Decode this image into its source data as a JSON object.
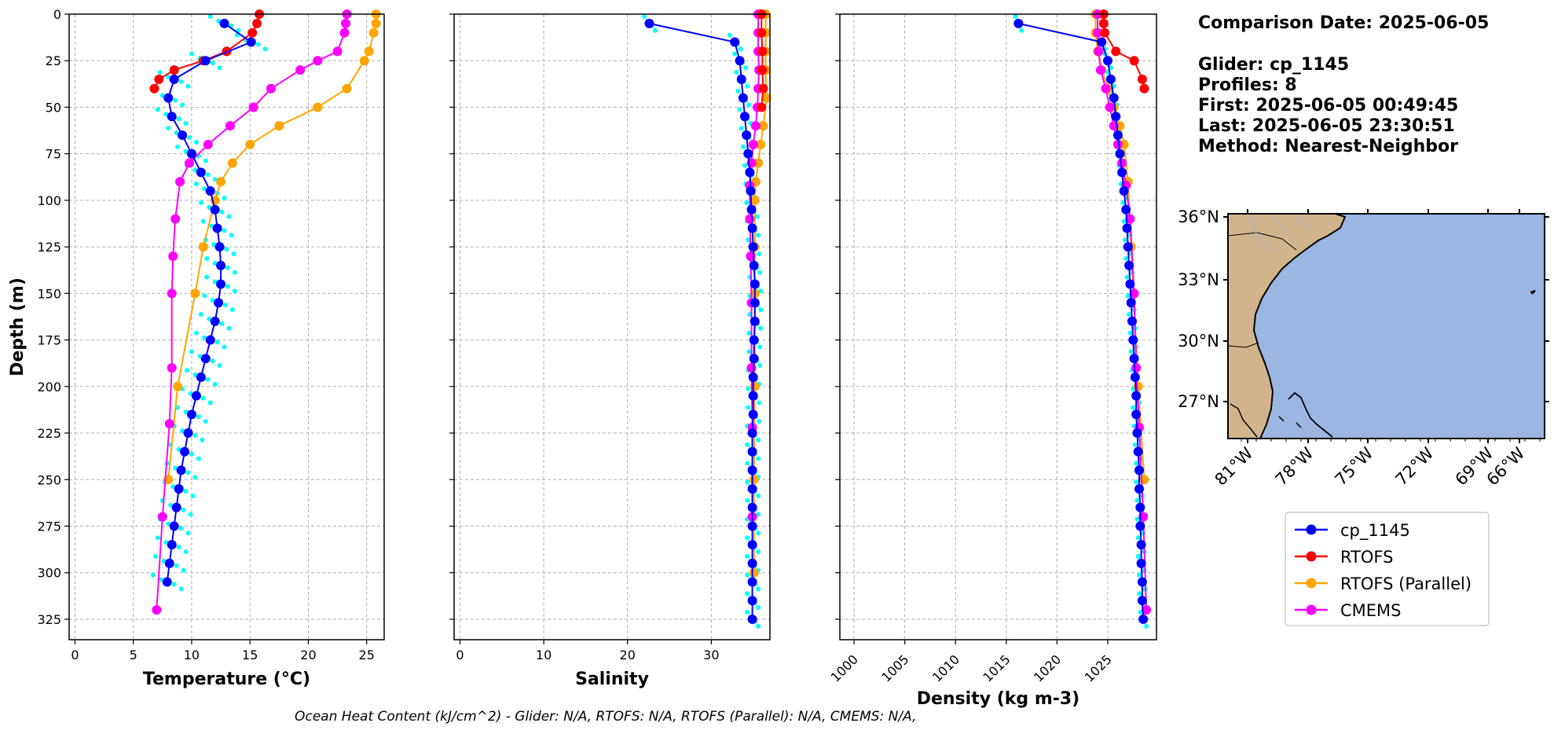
{
  "chart_data": [
    {
      "type": "line",
      "xlabel": "Temperature (°C)",
      "ylabel": "Depth (m)",
      "xlim": [
        -0.5,
        26.5
      ],
      "ylim": [
        336,
        0
      ],
      "xticks": [
        0,
        5,
        10,
        15,
        20,
        25
      ],
      "yticks": [
        0,
        25,
        50,
        75,
        100,
        125,
        150,
        175,
        200,
        225,
        250,
        275,
        300,
        325
      ],
      "grid": true,
      "series": [
        {
          "name": "cp_1145",
          "color": "#0000ff",
          "x": [
            12.8,
            15.1,
            11.2,
            8.5,
            8.0,
            8.3,
            9.2,
            10.0,
            10.8,
            11.6,
            12.0,
            12.2,
            12.4,
            12.5,
            12.5,
            12.3,
            12.0,
            11.6,
            11.2,
            10.8,
            10.4,
            10.0,
            9.7,
            9.4,
            9.1,
            8.9,
            8.7,
            8.5,
            8.3,
            8.1,
            7.9
          ],
          "y": [
            5,
            15,
            25,
            35,
            45,
            55,
            65,
            75,
            85,
            95,
            105,
            115,
            125,
            135,
            145,
            155,
            165,
            175,
            185,
            195,
            205,
            215,
            225,
            235,
            245,
            255,
            265,
            275,
            285,
            295,
            305
          ]
        },
        {
          "name": "RTOFS",
          "color": "#ff0000",
          "x": [
            15.8,
            15.6,
            15.2,
            13.0,
            11.0,
            8.5,
            7.2,
            6.8
          ],
          "y": [
            0,
            5,
            10,
            20,
            25,
            30,
            35,
            40
          ]
        },
        {
          "name": "RTOFS (Parallel)",
          "color": "#ffa500",
          "x": [
            25.8,
            25.8,
            25.6,
            25.2,
            24.8,
            23.3,
            20.8,
            17.5,
            15.0,
            13.5,
            12.5,
            12.0,
            11.0,
            10.3,
            8.8,
            8.0
          ],
          "y": [
            0,
            5,
            10,
            20,
            25,
            40,
            50,
            60,
            70,
            80,
            90,
            100,
            125,
            150,
            200,
            250
          ]
        },
        {
          "name": "CMEMS",
          "color": "#ff00ff",
          "x": [
            23.3,
            23.2,
            23.1,
            22.5,
            20.8,
            19.3,
            16.8,
            15.3,
            13.3,
            11.4,
            9.8,
            9.0,
            8.6,
            8.4,
            8.3,
            8.3,
            8.1,
            7.5,
            7.0
          ],
          "y": [
            0,
            5,
            10,
            20,
            25,
            30,
            40,
            50,
            60,
            70,
            80,
            90,
            110,
            130,
            150,
            190,
            220,
            270,
            320
          ]
        }
      ]
    },
    {
      "type": "line",
      "xlabel": "Salinity",
      "ylim": [
        336,
        0
      ],
      "xlim": [
        -0.7,
        37.0
      ],
      "xticks": [
        0,
        10,
        20,
        30
      ],
      "yticks": [
        0,
        25,
        50,
        75,
        100,
        125,
        150,
        175,
        200,
        225,
        250,
        275,
        300,
        325
      ],
      "grid": true,
      "series": [
        {
          "name": "cp_1145",
          "color": "#0000ff",
          "x": [
            22.6,
            32.8,
            33.4,
            33.6,
            33.8,
            34.0,
            34.2,
            34.4,
            34.6,
            34.7,
            34.8,
            34.9,
            35.0,
            35.1,
            35.2,
            35.2,
            35.2,
            35.1,
            35.1,
            35.0,
            35.0,
            35.0,
            34.9,
            34.9,
            34.9,
            34.9,
            34.9,
            34.9,
            34.9,
            34.9,
            34.9,
            34.9,
            34.9
          ],
          "y": [
            5,
            15,
            25,
            35,
            45,
            55,
            65,
            75,
            85,
            95,
            105,
            115,
            125,
            135,
            145,
            155,
            165,
            175,
            185,
            195,
            205,
            215,
            225,
            235,
            245,
            255,
            265,
            275,
            285,
            295,
            305,
            315,
            325
          ]
        },
        {
          "name": "RTOFS",
          "color": "#ff0000",
          "x": [
            36.0,
            36.0,
            36.1,
            36.1,
            36.2,
            36.0
          ],
          "y": [
            0,
            10,
            20,
            30,
            40,
            50
          ]
        },
        {
          "name": "RTOFS (Parallel)",
          "color": "#ffa500",
          "x": [
            36.5,
            36.5,
            36.5,
            36.5,
            36.6,
            36.2,
            35.9,
            35.6,
            35.3,
            35.2,
            35.2,
            35.2,
            35.2,
            35.1,
            35.1
          ],
          "y": [
            0,
            10,
            20,
            30,
            45,
            60,
            70,
            80,
            90,
            100,
            125,
            150,
            200,
            250,
            300
          ]
        },
        {
          "name": "CMEMS",
          "color": "#ff00ff",
          "x": [
            35.6,
            35.6,
            35.6,
            35.7,
            35.6,
            35.5,
            35.3,
            35.0,
            34.8,
            34.6,
            34.6,
            34.7,
            34.8,
            34.8,
            34.9,
            34.9
          ],
          "y": [
            0,
            10,
            20,
            30,
            40,
            50,
            60,
            70,
            80,
            92,
            110,
            130,
            155,
            190,
            222,
            270
          ]
        }
      ]
    },
    {
      "type": "line",
      "xlabel": "Density (kg m-3)",
      "ylim": [
        336,
        0
      ],
      "xlim": [
        998.6,
        1029.8
      ],
      "xticks": [
        1000,
        1005,
        1010,
        1015,
        1020,
        1025
      ],
      "yticks": [
        0,
        25,
        50,
        75,
        100,
        125,
        150,
        175,
        200,
        225,
        250,
        275,
        300,
        325
      ],
      "grid": true,
      "series": [
        {
          "name": "cp_1145",
          "color": "#0000ff",
          "x": [
            1016.2,
            1024.4,
            1025.0,
            1025.3,
            1025.6,
            1025.8,
            1026.0,
            1026.2,
            1026.4,
            1026.6,
            1026.8,
            1026.9,
            1027.0,
            1027.1,
            1027.2,
            1027.3,
            1027.4,
            1027.5,
            1027.6,
            1027.7,
            1027.8,
            1027.8,
            1027.9,
            1028.0,
            1028.1,
            1028.1,
            1028.2,
            1028.2,
            1028.3,
            1028.3,
            1028.4,
            1028.4,
            1028.5
          ],
          "y": [
            5,
            15,
            25,
            35,
            45,
            55,
            65,
            75,
            85,
            95,
            105,
            115,
            125,
            135,
            145,
            155,
            165,
            175,
            185,
            195,
            205,
            215,
            225,
            235,
            245,
            255,
            265,
            275,
            285,
            295,
            305,
            315,
            325
          ]
        },
        {
          "name": "RTOFS",
          "color": "#ff0000",
          "x": [
            1024.6,
            1024.6,
            1024.7,
            1025.8,
            1027.6,
            1028.4,
            1028.6
          ],
          "y": [
            0,
            5,
            10,
            20,
            25,
            35,
            40
          ]
        },
        {
          "name": "RTOFS (Parallel)",
          "color": "#ffa500",
          "x": [
            1023.8,
            1023.8,
            1024.0,
            1024.4,
            1025.0,
            1025.6,
            1026.2,
            1026.6,
            1027.0,
            1027.3,
            1028.0,
            1028.6
          ],
          "y": [
            0,
            10,
            20,
            30,
            40,
            50,
            60,
            70,
            90,
            125,
            200,
            250
          ]
        },
        {
          "name": "CMEMS",
          "color": "#ff00ff",
          "x": [
            1024.0,
            1024.0,
            1024.1,
            1024.3,
            1024.8,
            1025.2,
            1025.6,
            1026.0,
            1026.4,
            1026.8,
            1027.2,
            1027.6,
            1027.8,
            1028.1,
            1028.5,
            1028.8
          ],
          "y": [
            0,
            10,
            20,
            30,
            40,
            50,
            60,
            70,
            80,
            92,
            110,
            150,
            190,
            222,
            270,
            320
          ]
        }
      ]
    }
  ],
  "info": {
    "comparison_date": "Comparison Date: 2025-06-05",
    "glider": "Glider: cp_1145",
    "profiles": "Profiles: 8",
    "first": "First: 2025-06-05 00:49:45",
    "last": "Last: 2025-06-05 23:30:51",
    "method": "Method: Nearest-Neighbor"
  },
  "map": {
    "lat_ticks": [
      "36°N",
      "33°N",
      "30°N",
      "27°N"
    ],
    "lon_ticks": [
      "81°W",
      "78°W",
      "75°W",
      "72°W",
      "69°W",
      "66°W"
    ],
    "ocean_color": "#9ab6e1",
    "land_color": "#d2b48c"
  },
  "legend": {
    "items": [
      {
        "label": "cp_1145",
        "color": "#0000ff"
      },
      {
        "label": "RTOFS",
        "color": "#ff0000"
      },
      {
        "label": "RTOFS (Parallel)",
        "color": "#ffa500"
      },
      {
        "label": "CMEMS",
        "color": "#ff00ff"
      }
    ]
  },
  "footer": "Ocean Heat Content (kJ/cm^2) - Glider: N/A,  RTOFS: N/A,  RTOFS (Parallel): N/A,  CMEMS: N/A,"
}
